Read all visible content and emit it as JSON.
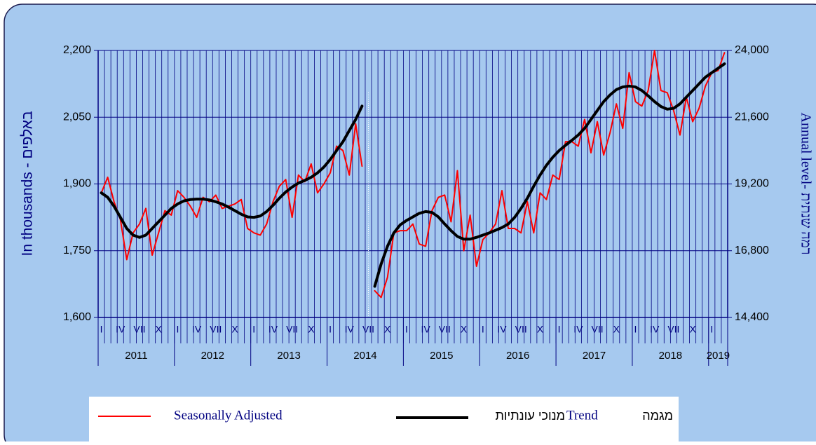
{
  "chart_data": {
    "type": "line",
    "y_label": "In thousands - באלפים",
    "y2_label": "Annual level- רמה שנתית",
    "categories": [
      "I",
      null,
      null,
      "IV",
      null,
      null,
      "VII",
      null,
      null,
      "X",
      null,
      null,
      "I",
      null,
      null,
      "IV",
      null,
      null,
      "VII",
      null,
      null,
      "X",
      null,
      null,
      "I",
      null,
      null,
      "IV",
      null,
      null,
      "VII",
      null,
      null,
      "X",
      null,
      null,
      "I",
      null,
      null,
      "IV",
      null,
      null,
      "VII",
      null,
      null,
      "X",
      null,
      null,
      "I",
      null,
      null,
      "IV",
      null,
      null,
      "VII",
      null,
      null,
      "X",
      null,
      null,
      "I",
      null,
      null,
      "IV",
      null,
      null,
      "VII",
      null,
      null,
      "X",
      null,
      null,
      "I",
      null,
      null,
      "IV",
      null,
      null,
      "VII",
      null,
      null,
      "X",
      null,
      null,
      "I",
      null,
      null,
      "IV",
      null,
      null,
      "VII",
      null,
      null,
      "X",
      null,
      null,
      "I",
      null,
      null
    ],
    "years": [
      "2011",
      "2012",
      "2013",
      "2014",
      "2015",
      "2016",
      "2017",
      "2018",
      "2019"
    ],
    "series": [
      {
        "name": "Seasonally Adjusted",
        "color": "#ff0000",
        "width": 2,
        "values": [
          1880,
          1915,
          1860,
          1820,
          1730,
          1790,
          1810,
          1845,
          1740,
          1790,
          1840,
          1830,
          1885,
          1870,
          1850,
          1825,
          1870,
          1860,
          1875,
          1845,
          1850,
          1855,
          1865,
          1800,
          1790,
          1785,
          1810,
          1860,
          1895,
          1910,
          1825,
          1920,
          1905,
          1945,
          1880,
          1900,
          1925,
          1985,
          1975,
          1920,
          2035,
          1940,
          null,
          1660,
          1645,
          1690,
          1790,
          1795,
          1795,
          1810,
          1765,
          1760,
          1840,
          1870,
          1875,
          1815,
          1930,
          1750,
          1830,
          1715,
          1775,
          1790,
          1810,
          1885,
          1800,
          1800,
          1790,
          1860,
          1790,
          1880,
          1865,
          1920,
          1910,
          1995,
          1995,
          1985,
          2045,
          1970,
          2040,
          1965,
          2015,
          2080,
          2025,
          2150,
          2085,
          2075,
          2110,
          2200,
          2110,
          2105,
          2065,
          2010,
          2095,
          2040,
          2070,
          2120,
          2150,
          2155,
          2195
        ]
      },
      {
        "name": "Trend",
        "color": "#000000",
        "width": 4,
        "values": [
          1880,
          1870,
          1850,
          1825,
          1800,
          1785,
          1780,
          1785,
          1800,
          1815,
          1830,
          1845,
          1855,
          1862,
          1865,
          1866,
          1866,
          1864,
          1860,
          1855,
          1848,
          1840,
          1832,
          1826,
          1825,
          1828,
          1838,
          1852,
          1868,
          1882,
          1893,
          1902,
          1908,
          1915,
          1925,
          1938,
          1955,
          1975,
          1995,
          2020,
          2045,
          2075,
          null,
          1670,
          1720,
          1760,
          1790,
          1808,
          1818,
          1826,
          1834,
          1838,
          1836,
          1826,
          1810,
          1795,
          1782,
          1776,
          1776,
          1780,
          1785,
          1790,
          1796,
          1802,
          1810,
          1825,
          1845,
          1868,
          1895,
          1920,
          1942,
          1960,
          1975,
          1987,
          1998,
          2010,
          2025,
          2045,
          2065,
          2085,
          2100,
          2112,
          2118,
          2120,
          2118,
          2110,
          2098,
          2085,
          2074,
          2068,
          2070,
          2080,
          2095,
          2110,
          2125,
          2140,
          2150,
          2160,
          2170
        ]
      }
    ],
    "legend_texts": [
      "מנוכי עונתיות",
      "מגמה"
    ],
    "ylim": [
      1600,
      2200
    ],
    "yticks": [
      {
        "value": 1600,
        "label": "1,600"
      },
      {
        "value": 1750,
        "label": "1,750"
      },
      {
        "value": 1900,
        "label": "1,900"
      },
      {
        "value": 2050,
        "label": "2,050"
      },
      {
        "value": 2200,
        "label": "2,200"
      }
    ],
    "y2lim": [
      14400,
      24000
    ],
    "y2ticks": [
      {
        "value": 14400,
        "label": "14,400"
      },
      {
        "value": 16800,
        "label": "16,800"
      },
      {
        "value": 19200,
        "label": "19,200"
      },
      {
        "value": 21600,
        "label": "21,600"
      },
      {
        "value": 24000,
        "label": "24,000"
      }
    ],
    "grid": true
  }
}
